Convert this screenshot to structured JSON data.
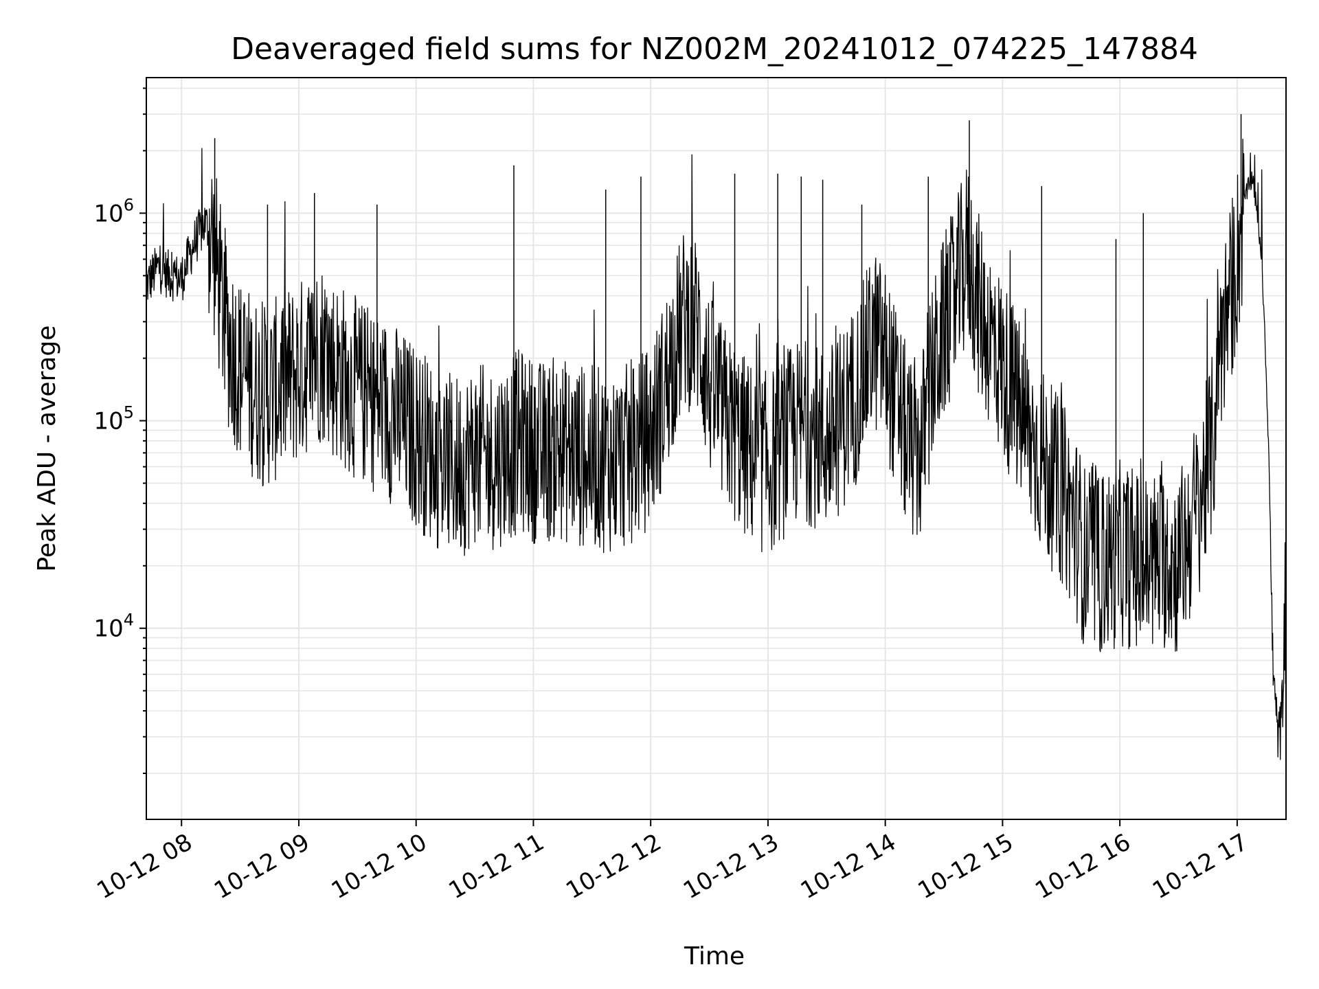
{
  "chart_data": {
    "type": "line",
    "title": "Deaveraged field sums for NZ002M_20241012_074225_147884",
    "xlabel": "Time",
    "ylabel": "Peak ADU - average",
    "yscale": "log",
    "ylim": [
      1200,
      4500000
    ],
    "xlim": [
      "2024-10-12 07:42",
      "2024-10-12 17:25"
    ],
    "grid": true,
    "x_ticks": [
      {
        "value": "2024-10-12 08:00",
        "label": "10-12 08"
      },
      {
        "value": "2024-10-12 09:00",
        "label": "10-12 09"
      },
      {
        "value": "2024-10-12 10:00",
        "label": "10-12 10"
      },
      {
        "value": "2024-10-12 11:00",
        "label": "10-12 11"
      },
      {
        "value": "2024-10-12 12:00",
        "label": "10-12 12"
      },
      {
        "value": "2024-10-12 13:00",
        "label": "10-12 13"
      },
      {
        "value": "2024-10-12 14:00",
        "label": "10-12 14"
      },
      {
        "value": "2024-10-12 15:00",
        "label": "10-12 15"
      },
      {
        "value": "2024-10-12 16:00",
        "label": "10-12 16"
      },
      {
        "value": "2024-10-12 17:00",
        "label": "10-12 17"
      }
    ],
    "y_ticks": [
      {
        "value": 10000,
        "base": "10",
        "exp": "4"
      },
      {
        "value": 100000,
        "base": "10",
        "exp": "5"
      },
      {
        "value": 1000000,
        "base": "10",
        "exp": "6"
      }
    ],
    "series": [
      {
        "color": "#000000",
        "points": [
          [
            "2024-10-12 07:42",
            450000
          ],
          [
            "2024-10-12 07:48",
            550000
          ],
          [
            "2024-10-12 07:54",
            500000
          ],
          [
            "2024-10-12 08:00",
            480000
          ],
          [
            "2024-10-12 08:06",
            700000
          ],
          [
            "2024-10-12 08:12",
            900000
          ],
          [
            "2024-10-12 08:16",
            750000
          ],
          [
            "2024-10-12 08:20",
            400000
          ],
          [
            "2024-10-12 08:24",
            250000
          ],
          [
            "2024-10-12 08:30",
            180000
          ],
          [
            "2024-10-12 08:36",
            150000
          ],
          [
            "2024-10-12 08:42",
            130000
          ],
          [
            "2024-10-12 08:48",
            140000
          ],
          [
            "2024-10-12 08:54",
            160000
          ],
          [
            "2024-10-12 09:00",
            170000
          ],
          [
            "2024-10-12 09:06",
            200000
          ],
          [
            "2024-10-12 09:12",
            220000
          ],
          [
            "2024-10-12 09:18",
            180000
          ],
          [
            "2024-10-12 09:24",
            160000
          ],
          [
            "2024-10-12 09:30",
            140000
          ],
          [
            "2024-10-12 09:36",
            130000
          ],
          [
            "2024-10-12 09:42",
            120000
          ],
          [
            "2024-10-12 09:48",
            110000
          ],
          [
            "2024-10-12 09:54",
            95000
          ],
          [
            "2024-10-12 10:00",
            85000
          ],
          [
            "2024-10-12 10:06",
            75000
          ],
          [
            "2024-10-12 10:12",
            65000
          ],
          [
            "2024-10-12 10:18",
            60000
          ],
          [
            "2024-10-12 10:24",
            62000
          ],
          [
            "2024-10-12 10:30",
            70000
          ],
          [
            "2024-10-12 10:36",
            65000
          ],
          [
            "2024-10-12 10:42",
            68000
          ],
          [
            "2024-10-12 10:48",
            75000
          ],
          [
            "2024-10-12 10:54",
            80000
          ],
          [
            "2024-10-12 11:00",
            72000
          ],
          [
            "2024-10-12 11:06",
            70000
          ],
          [
            "2024-10-12 11:12",
            75000
          ],
          [
            "2024-10-12 11:18",
            70000
          ],
          [
            "2024-10-12 11:24",
            68000
          ],
          [
            "2024-10-12 11:30",
            66000
          ],
          [
            "2024-10-12 11:36",
            65000
          ],
          [
            "2024-10-12 11:42",
            64000
          ],
          [
            "2024-10-12 11:48",
            68000
          ],
          [
            "2024-10-12 11:54",
            75000
          ],
          [
            "2024-10-12 12:00",
            85000
          ],
          [
            "2024-10-12 12:06",
            130000
          ],
          [
            "2024-10-12 12:12",
            220000
          ],
          [
            "2024-10-12 12:18",
            320000
          ],
          [
            "2024-10-12 12:24",
            280000
          ],
          [
            "2024-10-12 12:30",
            150000
          ],
          [
            "2024-10-12 12:36",
            110000
          ],
          [
            "2024-10-12 12:42",
            90000
          ],
          [
            "2024-10-12 12:48",
            75000
          ],
          [
            "2024-10-12 12:54",
            65000
          ],
          [
            "2024-10-12 13:00",
            62000
          ],
          [
            "2024-10-12 13:06",
            70000
          ],
          [
            "2024-10-12 13:12",
            85000
          ],
          [
            "2024-10-12 13:18",
            90000
          ],
          [
            "2024-10-12 13:24",
            85000
          ],
          [
            "2024-10-12 13:30",
            80000
          ],
          [
            "2024-10-12 13:36",
            95000
          ],
          [
            "2024-10-12 13:42",
            120000
          ],
          [
            "2024-10-12 13:48",
            160000
          ],
          [
            "2024-10-12 13:54",
            250000
          ],
          [
            "2024-10-12 14:00",
            200000
          ],
          [
            "2024-10-12 14:06",
            120000
          ],
          [
            "2024-10-12 14:12",
            75000
          ],
          [
            "2024-10-12 14:18",
            70000
          ],
          [
            "2024-10-12 14:24",
            160000
          ],
          [
            "2024-10-12 14:30",
            280000
          ],
          [
            "2024-10-12 14:36",
            400000
          ],
          [
            "2024-10-12 14:42",
            650000
          ],
          [
            "2024-10-12 14:48",
            350000
          ],
          [
            "2024-10-12 14:54",
            250000
          ],
          [
            "2024-10-12 15:00",
            180000
          ],
          [
            "2024-10-12 15:06",
            130000
          ],
          [
            "2024-10-12 15:12",
            90000
          ],
          [
            "2024-10-12 15:18",
            70000
          ],
          [
            "2024-10-12 15:24",
            55000
          ],
          [
            "2024-10-12 15:30",
            45000
          ],
          [
            "2024-10-12 15:36",
            35000
          ],
          [
            "2024-10-12 15:42",
            22000
          ],
          [
            "2024-10-12 15:48",
            20000
          ],
          [
            "2024-10-12 15:54",
            21000
          ],
          [
            "2024-10-12 16:00",
            23000
          ],
          [
            "2024-10-12 16:06",
            22000
          ],
          [
            "2024-10-12 16:12",
            20000
          ],
          [
            "2024-10-12 16:18",
            21000
          ],
          [
            "2024-10-12 16:24",
            22000
          ],
          [
            "2024-10-12 16:30",
            20000
          ],
          [
            "2024-10-12 16:36",
            30000
          ],
          [
            "2024-10-12 16:42",
            45000
          ],
          [
            "2024-10-12 16:48",
            80000
          ],
          [
            "2024-10-12 16:50",
            220000
          ],
          [
            "2024-10-12 16:54",
            300000
          ],
          [
            "2024-10-12 17:00",
            600000
          ],
          [
            "2024-10-12 17:04",
            1200000
          ],
          [
            "2024-10-12 17:08",
            1500000
          ],
          [
            "2024-10-12 17:12",
            700000
          ],
          [
            "2024-10-12 17:14",
            300000
          ],
          [
            "2024-10-12 17:16",
            80000
          ],
          [
            "2024-10-12 17:17",
            30000
          ],
          [
            "2024-10-12 17:18",
            8000
          ],
          [
            "2024-10-12 17:20",
            3500
          ],
          [
            "2024-10-12 17:22",
            3000
          ],
          [
            "2024-10-12 17:24",
            6000
          ],
          [
            "2024-10-12 17:25",
            6500
          ]
        ],
        "spikes": [
          [
            "2024-10-12 07:55",
            650000
          ],
          [
            "2024-10-12 08:17",
            2300000
          ],
          [
            "2024-10-12 08:44",
            1100000
          ],
          [
            "2024-10-12 09:08",
            1250000
          ],
          [
            "2024-10-12 09:40",
            1100000
          ],
          [
            "2024-10-12 10:50",
            1700000
          ],
          [
            "2024-10-12 11:37",
            1300000
          ],
          [
            "2024-10-12 11:55",
            1500000
          ],
          [
            "2024-10-12 12:43",
            1550000
          ],
          [
            "2024-10-12 13:05",
            1550000
          ],
          [
            "2024-10-12 13:17",
            1500000
          ],
          [
            "2024-10-12 13:28",
            1450000
          ],
          [
            "2024-10-12 13:48",
            1100000
          ],
          [
            "2024-10-12 14:22",
            1500000
          ],
          [
            "2024-10-12 14:43",
            2800000
          ],
          [
            "2024-10-12 15:20",
            1350000
          ],
          [
            "2024-10-12 15:58",
            750000
          ],
          [
            "2024-10-12 16:12",
            1000000
          ],
          [
            "2024-10-12 17:02",
            3000000
          ]
        ]
      }
    ]
  }
}
